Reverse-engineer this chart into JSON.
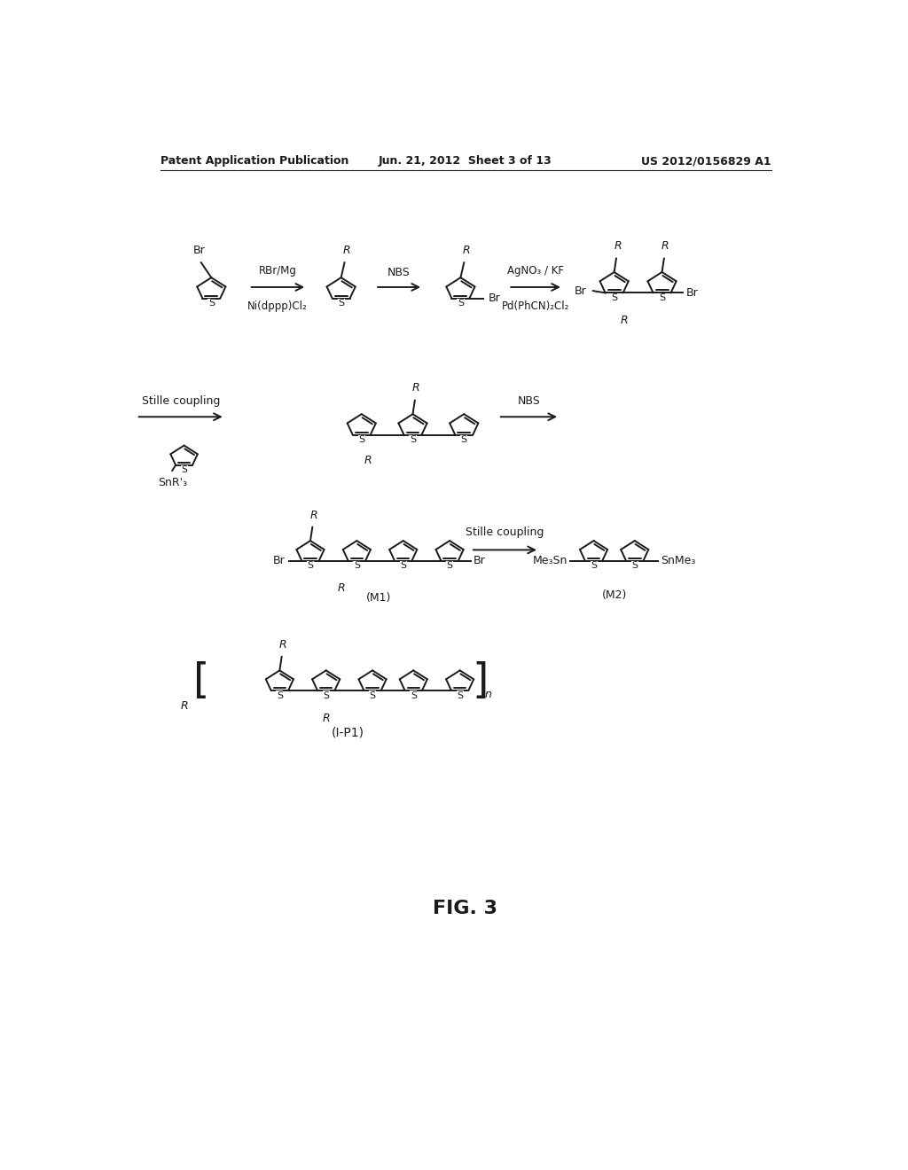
{
  "background_color": "#ffffff",
  "header_left": "Patent Application Publication",
  "header_mid": "Jun. 21, 2012  Sheet 3 of 13",
  "header_right": "US 2012/0156829 A1",
  "fig_label": "FIG. 3",
  "text_color": "#1a1a1a",
  "line_color": "#1a1a1a",
  "line_width": 1.4,
  "font_size_header": 9,
  "font_size_chem": 9,
  "font_size_fig": 16
}
